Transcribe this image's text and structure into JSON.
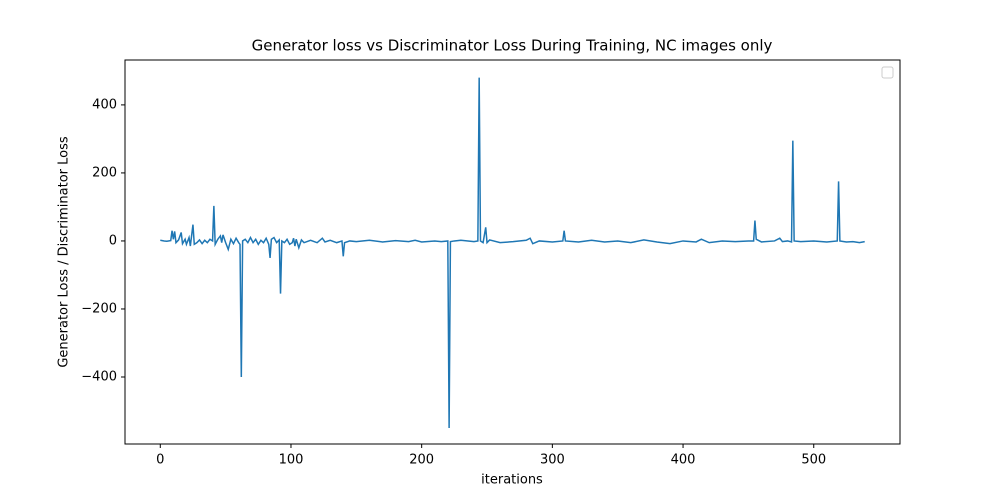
{
  "chart_data": {
    "type": "line",
    "title": "Generator loss vs Discriminator Loss During Training, NC images only",
    "x_label": "iterations",
    "y_label": "Generator Loss / Discriminator Loss",
    "color": "#1f77b4",
    "xlim": [
      -27,
      566
    ],
    "ylim": [
      -597,
      532
    ],
    "xticks": [
      0,
      100,
      200,
      300,
      400,
      500
    ],
    "yticks": [
      {
        "value": -400,
        "label": "−400"
      },
      {
        "value": -200,
        "label": "−200"
      },
      0,
      200,
      400
    ],
    "x": [
      0,
      3,
      5,
      8,
      9,
      10,
      11,
      12,
      14,
      16,
      17,
      19,
      20,
      22,
      23,
      25,
      26,
      28,
      30,
      32,
      34,
      36,
      38,
      40,
      41,
      42,
      44,
      46,
      47,
      48,
      50,
      52,
      54,
      56,
      58,
      60,
      61,
      62,
      63,
      65,
      67,
      69,
      71,
      73,
      75,
      77,
      79,
      81,
      83,
      84,
      85,
      87,
      89,
      91,
      92,
      93,
      95,
      97,
      99,
      101,
      102,
      103,
      104,
      106,
      108,
      110,
      115,
      120,
      124,
      126,
      130,
      135,
      139,
      140,
      141,
      145,
      150,
      160,
      170,
      180,
      190,
      195,
      200,
      210,
      215,
      220,
      221,
      222,
      225,
      230,
      240,
      243,
      244,
      245,
      247,
      249,
      250,
      252,
      260,
      270,
      280,
      283,
      285,
      290,
      300,
      308,
      309,
      310,
      320,
      330,
      340,
      350,
      360,
      370,
      380,
      390,
      400,
      410,
      414,
      420,
      430,
      440,
      450,
      454,
      455,
      456,
      460,
      470,
      474,
      476,
      480,
      483,
      484,
      485,
      490,
      500,
      510,
      518,
      519,
      520,
      525,
      530,
      535,
      539
    ],
    "values": [
      2,
      0,
      -1,
      1,
      30,
      5,
      28,
      -5,
      3,
      25,
      -8,
      5,
      -10,
      10,
      -15,
      48,
      -10,
      -5,
      3,
      -8,
      2,
      -5,
      5,
      0,
      103,
      -10,
      5,
      15,
      -5,
      18,
      -5,
      -25,
      5,
      -8,
      8,
      -5,
      -10,
      -400,
      0,
      5,
      -5,
      10,
      -5,
      5,
      -10,
      2,
      -5,
      8,
      -10,
      -50,
      5,
      10,
      -5,
      3,
      -155,
      0,
      -5,
      5,
      -10,
      -5,
      8,
      -15,
      5,
      -20,
      3,
      -5,
      2,
      -5,
      8,
      -3,
      2,
      -5,
      0,
      -45,
      -5,
      0,
      -2,
      2,
      -3,
      1,
      -2,
      2,
      -3,
      0,
      -2,
      0,
      -550,
      -2,
      0,
      2,
      -2,
      0,
      480,
      0,
      -5,
      40,
      -5,
      3,
      -5,
      -2,
      2,
      8,
      -8,
      0,
      -3,
      0,
      30,
      0,
      -3,
      2,
      -3,
      0,
      -5,
      3,
      -3,
      -8,
      0,
      -3,
      5,
      -5,
      0,
      -2,
      0,
      0,
      60,
      5,
      -3,
      0,
      8,
      -2,
      0,
      -3,
      295,
      0,
      -2,
      0,
      -3,
      0,
      175,
      0,
      -3,
      -2,
      -5,
      -2
    ]
  }
}
